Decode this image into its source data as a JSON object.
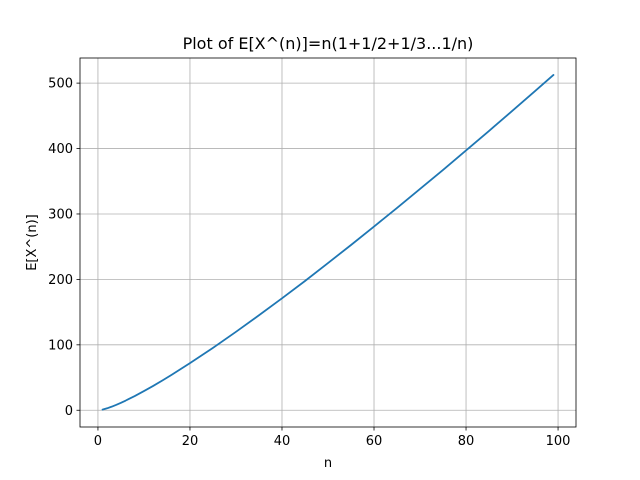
{
  "chart_data": {
    "type": "line",
    "title": "Plot of E[X^(n)]=n(1+1/2+1/3...1/n)",
    "xlabel": "n",
    "ylabel": "E[X^(n)]",
    "xlim": [
      -3.9,
      103.9
    ],
    "ylim": [
      -25.6,
      538.4
    ],
    "xticks": [
      0,
      20,
      40,
      60,
      80,
      100
    ],
    "yticks": [
      0,
      100,
      200,
      300,
      400,
      500
    ],
    "grid": true,
    "series": [
      {
        "color": "#1f77b4",
        "x": [
          1,
          2,
          3,
          4,
          5,
          6,
          7,
          8,
          9,
          10,
          12,
          14,
          16,
          18,
          20,
          25,
          30,
          35,
          40,
          45,
          50,
          55,
          60,
          65,
          70,
          75,
          80,
          85,
          90,
          95,
          99
        ],
        "y": [
          1.0,
          3.0,
          5.5,
          8.3,
          11.4,
          14.7,
          18.2,
          21.7,
          25.5,
          29.3,
          37.2,
          45.5,
          54.1,
          63.0,
          72.0,
          95.4,
          119.9,
          145.2,
          171.1,
          197.6,
          225.0,
          252.6,
          280.8,
          309.3,
          338.2,
          367.4,
          397.2,
          427.0,
          457.3,
          487.8,
          512.5
        ]
      }
    ]
  }
}
